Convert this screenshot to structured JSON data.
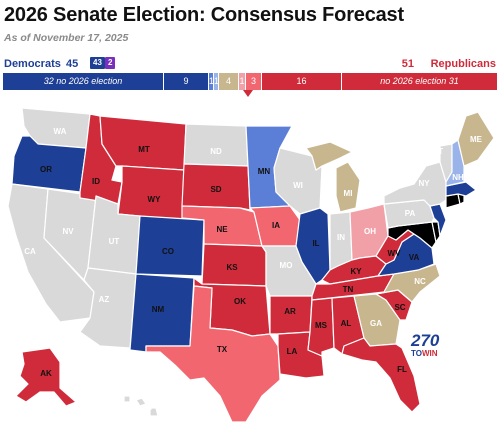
{
  "header": {
    "title": "2026 Senate Election: Consensus Forecast",
    "subtitle": "As of November 17, 2025"
  },
  "totals": {
    "dem_label": "Democrats",
    "dem_total": "45",
    "dem_badge_a": "43",
    "dem_badge_b": "2",
    "rep_total": "51",
    "rep_label": "Republicans"
  },
  "bar": {
    "dem_no_election": "32 no 2026 election",
    "safe_d": "9",
    "likely_d": "1",
    "lean_d": "1",
    "tossup": "4",
    "lean_r": "1",
    "likely_r": "3",
    "safe_r": "16",
    "rep_no_election": "no 2026 election 31"
  },
  "colors": {
    "safe_d": "#1e3f96",
    "likely_d": "#5b7fd6",
    "lean_d": "#9ab3e8",
    "tossup": "#c8b68e",
    "lean_r": "#f2a0a8",
    "likely_r": "#f26670",
    "safe_r": "#cf2b3a",
    "no_election": "#d9d9d9",
    "independent_badge": "#7b2fbe"
  },
  "states": [
    {
      "abbr": "WA",
      "rating": "none"
    },
    {
      "abbr": "OR",
      "rating": "safe_d"
    },
    {
      "abbr": "CA",
      "rating": "none"
    },
    {
      "abbr": "ID",
      "rating": "safe_r"
    },
    {
      "abbr": "NV",
      "rating": "none"
    },
    {
      "abbr": "MT",
      "rating": "safe_r"
    },
    {
      "abbr": "WY",
      "rating": "safe_r"
    },
    {
      "abbr": "UT",
      "rating": "none"
    },
    {
      "abbr": "AZ",
      "rating": "none"
    },
    {
      "abbr": "CO",
      "rating": "safe_d"
    },
    {
      "abbr": "NM",
      "rating": "safe_d"
    },
    {
      "abbr": "ND",
      "rating": "none"
    },
    {
      "abbr": "SD",
      "rating": "safe_r"
    },
    {
      "abbr": "NE",
      "rating": "likely_r"
    },
    {
      "abbr": "KS",
      "rating": "safe_r"
    },
    {
      "abbr": "OK",
      "rating": "safe_r"
    },
    {
      "abbr": "TX",
      "rating": "likely_r"
    },
    {
      "abbr": "MN",
      "rating": "likely_d"
    },
    {
      "abbr": "IA",
      "rating": "likely_r"
    },
    {
      "abbr": "MO",
      "rating": "none"
    },
    {
      "abbr": "AR",
      "rating": "safe_r"
    },
    {
      "abbr": "LA",
      "rating": "safe_r"
    },
    {
      "abbr": "WI",
      "rating": "none"
    },
    {
      "abbr": "IL",
      "rating": "safe_d"
    },
    {
      "abbr": "MI",
      "rating": "tossup"
    },
    {
      "abbr": "IN",
      "rating": "none"
    },
    {
      "abbr": "OH",
      "rating": "lean_r"
    },
    {
      "abbr": "KY",
      "rating": "safe_r"
    },
    {
      "abbr": "TN",
      "rating": "safe_r"
    },
    {
      "abbr": "MS",
      "rating": "safe_r"
    },
    {
      "abbr": "AL",
      "rating": "safe_r"
    },
    {
      "abbr": "GA",
      "rating": "tossup"
    },
    {
      "abbr": "FL",
      "rating": "safe_r"
    },
    {
      "abbr": "SC",
      "rating": "safe_r"
    },
    {
      "abbr": "NC",
      "rating": "tossup"
    },
    {
      "abbr": "VA",
      "rating": "safe_d"
    },
    {
      "abbr": "WV",
      "rating": "safe_r"
    },
    {
      "abbr": "PA",
      "rating": "none"
    },
    {
      "abbr": "NY",
      "rating": "none"
    },
    {
      "abbr": "VT",
      "rating": "none"
    },
    {
      "abbr": "NH",
      "rating": "lean_d"
    },
    {
      "abbr": "ME",
      "rating": "tossup"
    },
    {
      "abbr": "MA",
      "rating": "safe_d"
    },
    {
      "abbr": "NJ",
      "rating": "safe_d"
    },
    {
      "abbr": "AK",
      "rating": "safe_r"
    },
    {
      "abbr": "HI",
      "rating": "none"
    }
  ],
  "logo": {
    "line1": "270",
    "line2_a": "TO",
    "line2_b": "WIN"
  }
}
